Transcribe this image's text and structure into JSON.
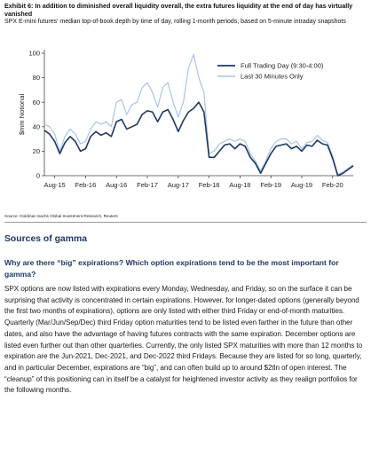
{
  "exhibit": {
    "title": "Exhibit 6: In addition to diminished overall liquidity overall, the extra futures liquidity at the end of day has virtually vanished",
    "subtitle": "SPX E-mini futures' median top-of-book depth by time of day, rolling 1-month periods, based on 5-minute intraday snapshots",
    "source": "Source: Goldman Sachs Global Investment Research, Reuters"
  },
  "chart_data": {
    "type": "line",
    "ylabel": "$mm Notional",
    "xlabel": "",
    "ylim": [
      0,
      100
    ],
    "yticks": [
      0,
      20,
      40,
      60,
      80,
      100
    ],
    "xticks": [
      "Aug-15",
      "Feb-16",
      "Aug-16",
      "Feb-17",
      "Aug-17",
      "Feb-18",
      "Aug-18",
      "Feb-19",
      "Aug-19",
      "Feb-20"
    ],
    "xrange": [
      "2015-06",
      "2020-06"
    ],
    "legend_position": "top-right",
    "grid": false,
    "x": [
      "2015-06",
      "2015-07",
      "2015-08",
      "2015-09",
      "2015-10",
      "2015-11",
      "2015-12",
      "2016-01",
      "2016-02",
      "2016-03",
      "2016-04",
      "2016-05",
      "2016-06",
      "2016-07",
      "2016-08",
      "2016-09",
      "2016-10",
      "2016-11",
      "2016-12",
      "2017-01",
      "2017-02",
      "2017-03",
      "2017-04",
      "2017-05",
      "2017-06",
      "2017-07",
      "2017-08",
      "2017-09",
      "2017-10",
      "2017-11",
      "2017-12",
      "2018-01",
      "2018-02",
      "2018-03",
      "2018-04",
      "2018-05",
      "2018-06",
      "2018-07",
      "2018-08",
      "2018-09",
      "2018-10",
      "2018-11",
      "2018-12",
      "2019-01",
      "2019-02",
      "2019-03",
      "2019-04",
      "2019-05",
      "2019-06",
      "2019-07",
      "2019-08",
      "2019-09",
      "2019-10",
      "2019-11",
      "2019-12",
      "2020-01",
      "2020-02",
      "2020-03",
      "2020-04",
      "2020-05",
      "2020-06"
    ],
    "series": [
      {
        "name": "Full Trading Day (9:30-4:00)",
        "color": "#1f3864",
        "values": [
          37,
          34,
          28,
          18,
          27,
          32,
          28,
          20,
          22,
          32,
          36,
          33,
          35,
          32,
          44,
          46,
          38,
          40,
          42,
          50,
          53,
          52,
          44,
          52,
          54,
          46,
          36,
          45,
          52,
          55,
          60,
          52,
          15,
          15,
          20,
          25,
          26,
          22,
          26,
          24,
          15,
          10,
          2,
          10,
          18,
          24,
          25,
          26,
          22,
          24,
          20,
          25,
          24,
          29,
          26,
          25,
          14,
          0,
          2,
          5,
          8
        ]
      },
      {
        "name": "Last 30 Minutes Only",
        "color": "#a7c3e8",
        "values": [
          42,
          40,
          34,
          20,
          32,
          38,
          34,
          26,
          28,
          38,
          44,
          42,
          44,
          40,
          60,
          62,
          50,
          58,
          60,
          72,
          76,
          68,
          56,
          72,
          76,
          60,
          48,
          60,
          88,
          99,
          80,
          68,
          18,
          20,
          26,
          28,
          30,
          28,
          30,
          28,
          18,
          12,
          4,
          12,
          22,
          28,
          30,
          30,
          26,
          28,
          22,
          27,
          28,
          33,
          29,
          27,
          16,
          1,
          3,
          6,
          9
        ]
      }
    ]
  },
  "section": {
    "heading": "Sources of gamma",
    "question": "Why are there “big” expirations? Which option expirations tend to be the most important for gamma?",
    "body": "SPX options are now listed with expirations every Monday, Wednesday, and Friday, so on the surface it can be surprising that activity is concentrated in certain expirations. However, for longer-dated options (generally beyond the first two months of expirations), options are only listed with either third Friday or end-of-month maturities. Quarterly (Mar/Jun/Sep/Dec) third Friday option maturities tend to be listed even farther in the future than other dates, and also have the advantage of having futures contracts with the same expiration. December options are listed even further out than other quarterlies. Currently, the only listed SPX maturities with more than 12 months to expiration are the Jun-2021, Dec-2021, and Dec-2022 third Fridays. Because they are listed for so long, quarterly, and in particular December, expirations are “big”, and can often build up to around $2tln of open interest. The “cleanup” of this positioning can in itself be a catalyst for heightened investor activity as they realign portfolios for the following months."
  }
}
